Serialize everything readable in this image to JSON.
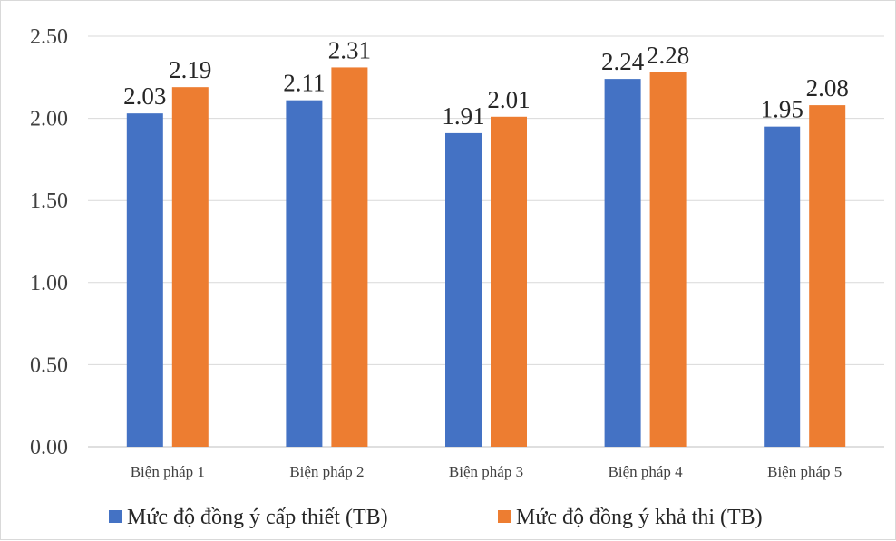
{
  "chart_data": {
    "type": "bar",
    "title": "",
    "xlabel": "",
    "ylabel": "",
    "categories": [
      "Biện pháp 1",
      "Biện pháp 2",
      "Biện pháp 3",
      "Biện pháp 4",
      "Biện pháp 5"
    ],
    "series": [
      {
        "name": "Mức độ đồng ý cấp thiết (TB)",
        "values": [
          2.03,
          2.11,
          1.91,
          2.24,
          1.95
        ],
        "color": "#4472c4"
      },
      {
        "name": "Mức độ đồng ý khả thi (TB)",
        "values": [
          2.19,
          2.31,
          2.01,
          2.28,
          2.08
        ],
        "color": "#ed7d31"
      }
    ],
    "ylim": [
      0,
      2.5
    ],
    "yticks": [
      "0.00",
      "0.50",
      "1.00",
      "1.50",
      "2.00",
      "2.50"
    ],
    "grid": true,
    "legend_position": "bottom"
  }
}
